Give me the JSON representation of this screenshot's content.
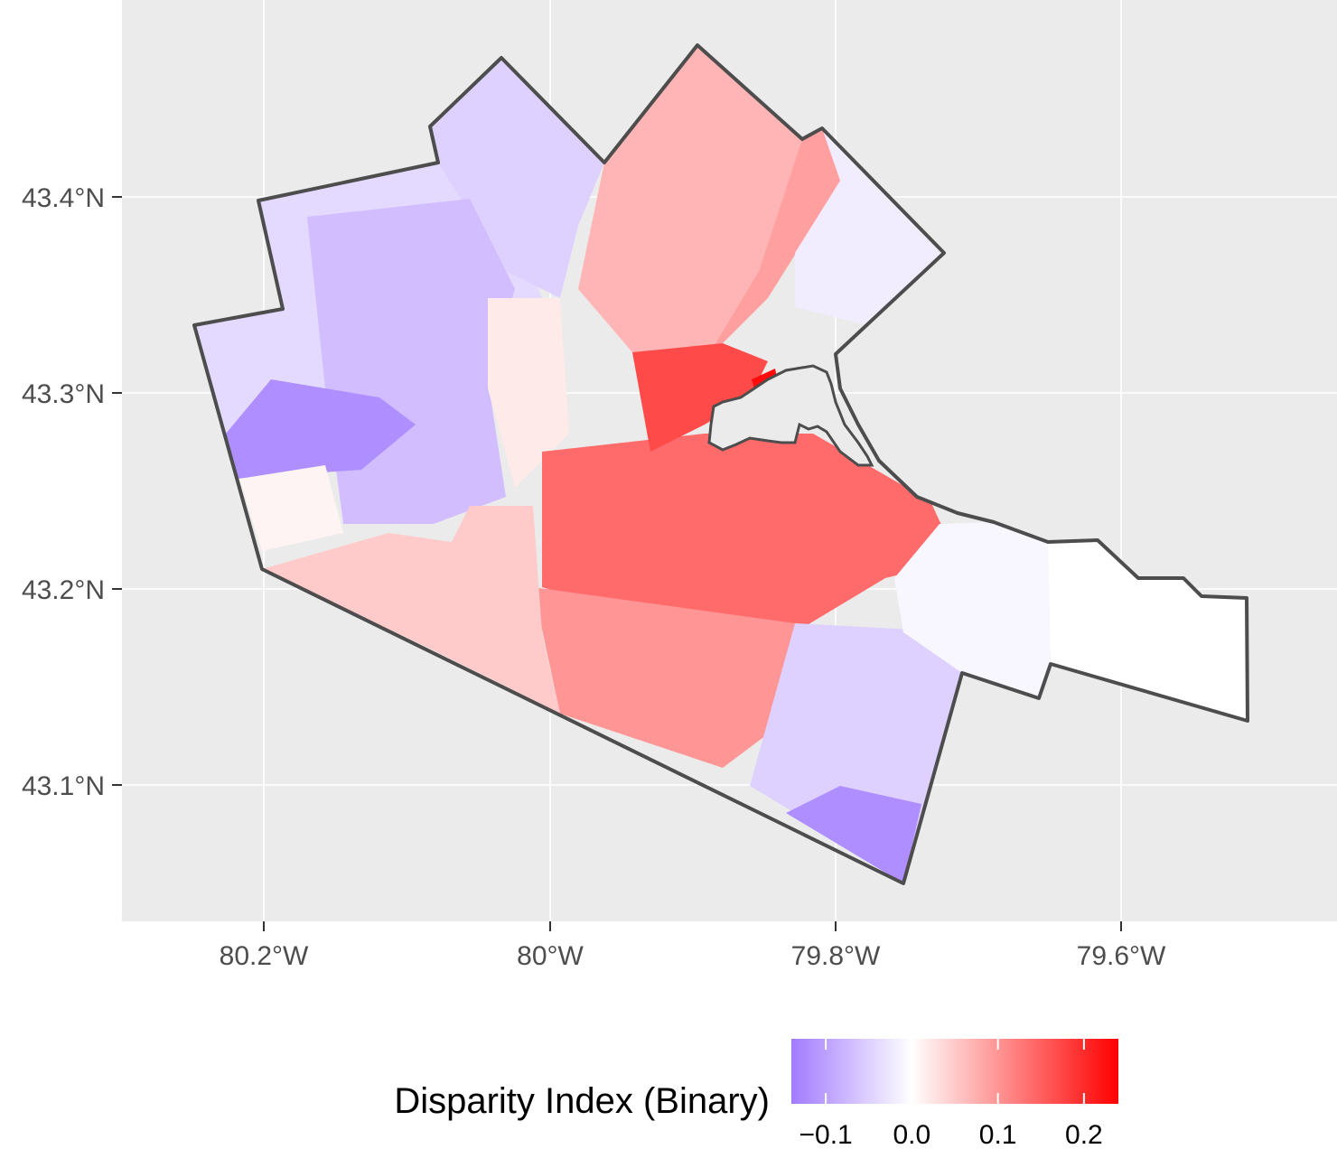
{
  "map": {
    "panel_background": "#ebebeb",
    "grid_color": "#ffffff",
    "boundary_color": "#4d4d4d",
    "y_ticks": [
      "43.4°N",
      "43.3°N",
      "43.2°N",
      "43.1°N"
    ],
    "x_ticks": [
      "80.2°W",
      "80°W",
      "79.8°W",
      "79.6°W"
    ],
    "regions": [
      {
        "id": "nw-flamborough",
        "value": -0.04
      },
      {
        "id": "north-flamborough",
        "value": -0.05
      },
      {
        "id": "west-rural",
        "value": -0.07
      },
      {
        "id": "west-strip",
        "value": -0.12
      },
      {
        "id": "waterdown",
        "value": 0.07
      },
      {
        "id": "burlington-north",
        "value": 0.09
      },
      {
        "id": "north-east-east",
        "value": -0.02
      },
      {
        "id": "central-west",
        "value": 0.02
      },
      {
        "id": "downtown",
        "value": 0.14
      },
      {
        "id": "harbour-core",
        "value": 0.17
      },
      {
        "id": "harbour-hotspot",
        "value": 0.23
      },
      {
        "id": "south-central",
        "value": 0.1
      },
      {
        "id": "south-east-mountain",
        "value": -0.05
      },
      {
        "id": "stoney-creek",
        "value": -0.01
      },
      {
        "id": "grimsby",
        "value": 0.0
      },
      {
        "id": "south-corner",
        "value": -0.12
      },
      {
        "id": "southwest",
        "value": 0.05
      },
      {
        "id": "west-white",
        "value": 0.01
      }
    ]
  },
  "legend": {
    "title": "Disparity Index (Binary)",
    "ticks": [
      "−0.1",
      "0.0",
      "0.1",
      "0.2"
    ],
    "tick_values": [
      -0.1,
      0.0,
      0.1,
      0.2
    ],
    "range": [
      -0.14,
      0.24
    ],
    "colors": {
      "low": "#a27bff",
      "mid": "#ffffff",
      "high": "#ff0000"
    }
  }
}
